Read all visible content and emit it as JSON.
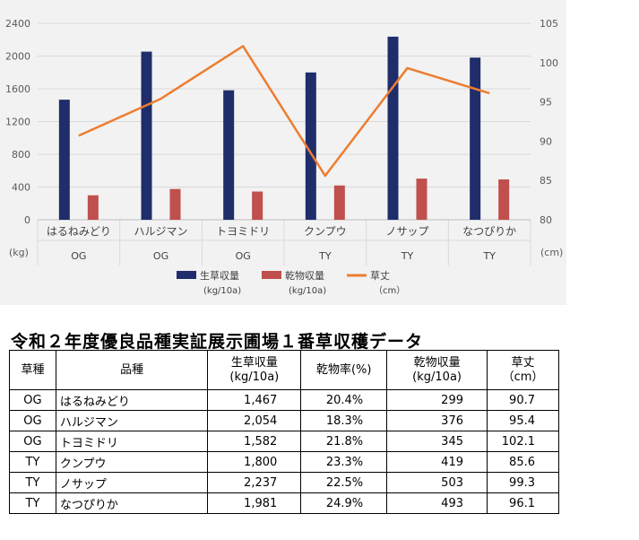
{
  "chart_data": {
    "type": "bar+line",
    "categories": [
      "はるねみどり",
      "ハルジマン",
      "トヨミドリ",
      "クンプウ",
      "ノサップ",
      "なつぴりか"
    ],
    "groups": [
      "OG",
      "OG",
      "OG",
      "TY",
      "TY",
      "TY"
    ],
    "series": [
      {
        "name": "生草収量",
        "unit": "(kg/10a)",
        "type": "bar",
        "axis": "left",
        "color": "#1f2d6b",
        "values": [
          1467,
          2054,
          1582,
          1800,
          2237,
          1981
        ]
      },
      {
        "name": "乾物収量",
        "unit": "(kg/10a)",
        "type": "bar",
        "axis": "left",
        "color": "#c0504d",
        "values": [
          299,
          376,
          345,
          419,
          503,
          493
        ]
      },
      {
        "name": "草丈",
        "unit": "（cm）",
        "type": "line",
        "axis": "right",
        "color": "#ed7d31",
        "values": [
          90.7,
          95.4,
          102.1,
          85.6,
          99.3,
          96.1
        ]
      }
    ],
    "y_left": {
      "label": "(kg)",
      "range": [
        0,
        2400
      ],
      "ticks": [
        "0",
        "400",
        "800",
        "1200",
        "1600",
        "2000",
        "2400"
      ]
    },
    "y_right": {
      "label": "(cm)",
      "range": [
        80,
        105
      ],
      "ticks": [
        "80",
        "85",
        "90",
        "95",
        "100",
        "105"
      ]
    },
    "legend_position": "bottom"
  },
  "table": {
    "title": "令和２年度優良品種実証展示圃場１番草収穫データ",
    "headers": [
      "草種",
      "品種",
      "生草収量\n(kg/10a)",
      "乾物率(%)",
      "乾物収量\n(kg/10a)",
      "草丈\n（cm）"
    ],
    "rows": [
      [
        "OG",
        "はるねみどり",
        "1,467",
        "20.4%",
        "299",
        "90.7"
      ],
      [
        "OG",
        "ハルジマン",
        "2,054",
        "18.3%",
        "376",
        "95.4"
      ],
      [
        "OG",
        "トヨミドリ",
        "1,582",
        "21.8%",
        "345",
        "102.1"
      ],
      [
        "TY",
        "クンプウ",
        "1,800",
        "23.3%",
        "419",
        "85.6"
      ],
      [
        "TY",
        "ノサップ",
        "2,237",
        "22.5%",
        "503",
        "99.3"
      ],
      [
        "TY",
        "なつぴりか",
        "1,981",
        "24.9%",
        "493",
        "96.1"
      ]
    ]
  }
}
